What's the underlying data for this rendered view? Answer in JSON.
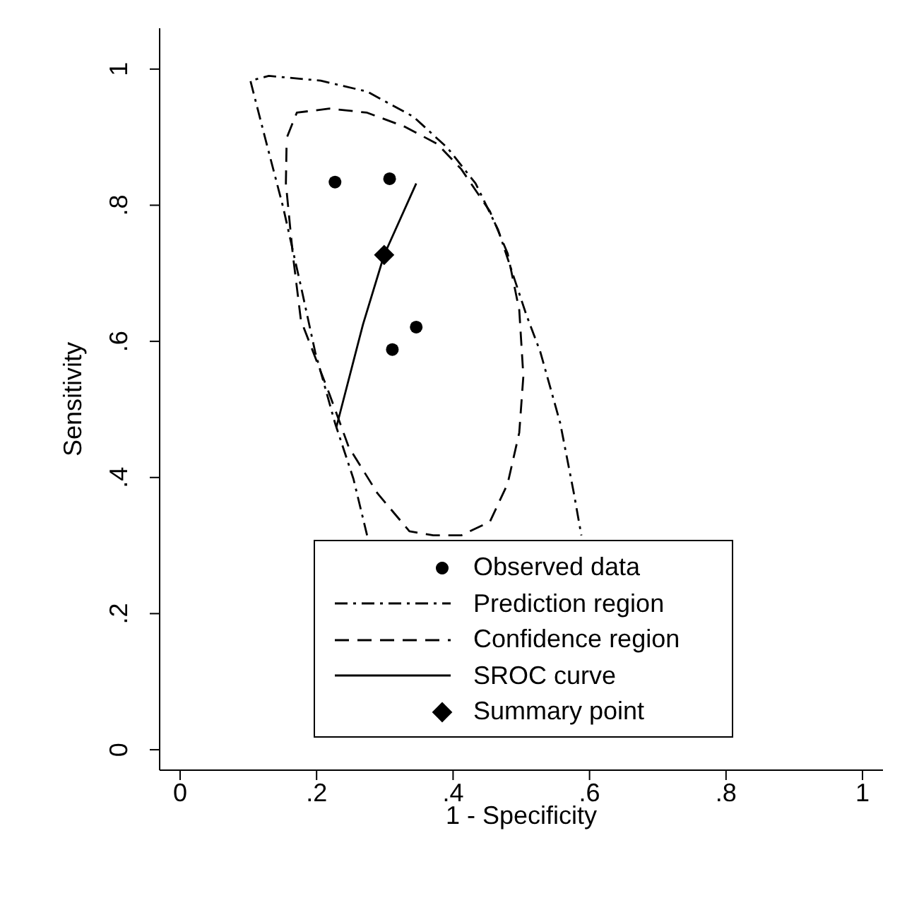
{
  "chart_data": {
    "type": "line",
    "xlabel": "1 - Specificity",
    "ylabel": "Sensitivity",
    "xlim": [
      -0.03,
      1.03
    ],
    "ylim": [
      -0.03,
      1.06
    ],
    "xticks": [
      0,
      {
        "value": 0.2,
        "label": ".2"
      },
      {
        "value": 0.4,
        "label": ".4"
      },
      {
        "value": 0.6,
        "label": ".6"
      },
      {
        "value": 0.8,
        "label": ".8"
      },
      1
    ],
    "yticks": [
      0,
      {
        "value": 0.2,
        "label": ".2"
      },
      {
        "value": 0.4,
        "label": ".4"
      },
      {
        "value": 0.6,
        "label": ".6"
      },
      {
        "value": 0.8,
        "label": ".8"
      },
      1
    ],
    "grid": false,
    "legend": "bottom",
    "series": [
      {
        "name": "Observed data",
        "type": "scatter",
        "marker": "circle",
        "color": "#000000",
        "x": [
          0.227,
          0.307,
          0.346,
          0.311
        ],
        "values": [
          0.834,
          0.839,
          0.621,
          0.588
        ]
      },
      {
        "name": "Prediction region",
        "line_style": "dashdot",
        "color": "#000000",
        "x": [
          0.274,
          0.254,
          0.227,
          0.198,
          0.177,
          0.151,
          0.124,
          0.103,
          0.13,
          0.206,
          0.274,
          0.342,
          0.392,
          0.433,
          0.466,
          0.507,
          0.528,
          0.557,
          0.577,
          0.588
        ],
        "values": [
          0.315,
          0.398,
          0.48,
          0.584,
          0.681,
          0.797,
          0.901,
          0.983,
          0.99,
          0.983,
          0.967,
          0.93,
          0.884,
          0.832,
          0.764,
          0.64,
          0.584,
          0.48,
          0.377,
          0.315
        ]
      },
      {
        "name": "Confidence region",
        "line_style": "dashed",
        "color": "#000000",
        "x": [
          0.157,
          0.171,
          0.219,
          0.274,
          0.33,
          0.377,
          0.412,
          0.454,
          0.48,
          0.497,
          0.503,
          0.497,
          0.48,
          0.454,
          0.412,
          0.371,
          0.336,
          0.289,
          0.247,
          0.219,
          0.177,
          0.165,
          0.155,
          0.156
        ],
        "values": [
          0.901,
          0.936,
          0.942,
          0.936,
          0.915,
          0.89,
          0.853,
          0.791,
          0.729,
          0.646,
          0.549,
          0.466,
          0.391,
          0.335,
          0.315,
          0.315,
          0.321,
          0.377,
          0.445,
          0.522,
          0.631,
          0.729,
          0.832,
          0.89
        ]
      },
      {
        "name": "SROC curve",
        "line_style": "solid",
        "color": "#000000",
        "x": [
          0.229,
          0.268,
          0.299,
          0.346
        ],
        "values": [
          0.474,
          0.625,
          0.727,
          0.832
        ]
      },
      {
        "name": "Summary point",
        "type": "scatter",
        "marker": "diamond",
        "color": "#000000",
        "x": [
          0.299
        ],
        "values": [
          0.727
        ]
      }
    ]
  }
}
